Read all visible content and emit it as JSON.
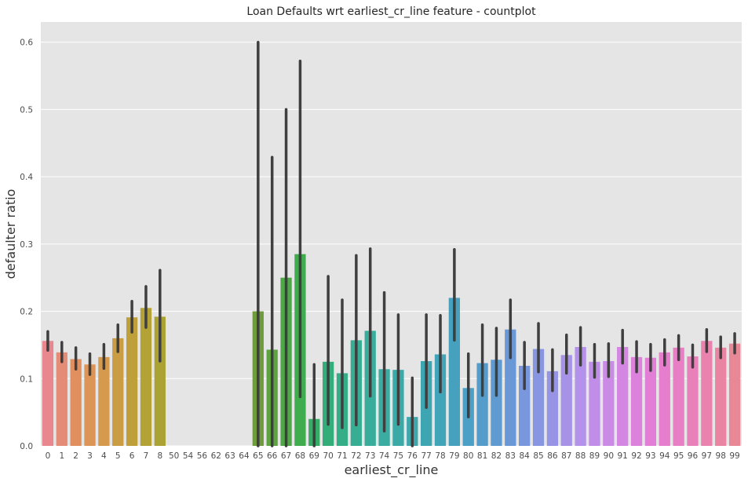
{
  "chart_data": {
    "type": "bar",
    "title": "Loan Defaults wrt earliest_cr_line feature - countplot",
    "xlabel": "earliest_cr_line",
    "ylabel": "defaulter ratio",
    "ylim": [
      0,
      0.63
    ],
    "yticks": [
      "0.0",
      "0.1",
      "0.2",
      "0.3",
      "0.4",
      "0.5",
      "0.6"
    ],
    "grid": true,
    "background": "#e5e5e5",
    "error_bar_color": "#3f3f3f",
    "categories": [
      "0",
      "1",
      "2",
      "3",
      "4",
      "5",
      "6",
      "7",
      "8",
      "50",
      "54",
      "56",
      "62",
      "63",
      "64",
      "65",
      "66",
      "67",
      "68",
      "69",
      "70",
      "71",
      "72",
      "73",
      "74",
      "75",
      "76",
      "77",
      "78",
      "79",
      "80",
      "81",
      "82",
      "83",
      "84",
      "85",
      "86",
      "87",
      "88",
      "89",
      "90",
      "91",
      "92",
      "93",
      "94",
      "95",
      "96",
      "97",
      "98",
      "99"
    ],
    "values": [
      0.156,
      0.139,
      0.129,
      0.121,
      0.132,
      0.16,
      0.191,
      0.205,
      0.192,
      0,
      0,
      0,
      0,
      0,
      0,
      0.2,
      0.143,
      0.25,
      0.285,
      0.04,
      0.125,
      0.108,
      0.157,
      0.171,
      0.114,
      0.113,
      0.043,
      0.126,
      0.136,
      0.22,
      0.086,
      0.123,
      0.128,
      0.173,
      0.119,
      0.144,
      0.111,
      0.135,
      0.147,
      0.125,
      0.126,
      0.147,
      0.132,
      0.131,
      0.139,
      0.146,
      0.133,
      0.156,
      0.146,
      0.152
    ],
    "error_low": [
      0.142,
      0.125,
      0.114,
      0.106,
      0.115,
      0.14,
      0.169,
      0.176,
      0.126,
      0,
      0,
      0,
      0,
      0,
      0,
      0.0,
      0.0,
      0.0,
      0.073,
      0.0,
      0.032,
      0.027,
      0.031,
      0.074,
      0.022,
      0.032,
      0.0,
      0.057,
      0.08,
      0.157,
      0.043,
      0.075,
      0.075,
      0.131,
      0.085,
      0.11,
      0.082,
      0.108,
      0.12,
      0.102,
      0.103,
      0.123,
      0.11,
      0.112,
      0.12,
      0.128,
      0.117,
      0.14,
      0.131,
      0.138
    ],
    "error_high": [
      0.17,
      0.154,
      0.146,
      0.137,
      0.151,
      0.18,
      0.215,
      0.237,
      0.261,
      0,
      0,
      0,
      0,
      0,
      0,
      0.6,
      0.429,
      0.5,
      0.572,
      0.121,
      0.252,
      0.217,
      0.283,
      0.293,
      0.228,
      0.195,
      0.101,
      0.195,
      0.194,
      0.292,
      0.137,
      0.18,
      0.175,
      0.217,
      0.154,
      0.182,
      0.143,
      0.165,
      0.176,
      0.151,
      0.152,
      0.172,
      0.155,
      0.151,
      0.158,
      0.164,
      0.15,
      0.173,
      0.162,
      0.167
    ],
    "colors": [
      "#e8878d",
      "#e58c76",
      "#e28f5f",
      "#dc9557",
      "#d69a4e",
      "#ca9c43",
      "#be9f3a",
      "#b4a236",
      "#aaa334",
      "#9ba63a",
      "#8da842",
      "#7eaa46",
      "#6fac4a",
      "#5fae4c",
      "#4eae4e",
      "#6f9d3e",
      "#5da441",
      "#4ea847",
      "#3fac4e",
      "#35ad67",
      "#33ae7b",
      "#35ae88",
      "#37ae93",
      "#39ad9b",
      "#3aaca2",
      "#3baaa7",
      "#3ca8ad",
      "#3ea6b2",
      "#41a4b8",
      "#45a1be",
      "#4c9fc5",
      "#549dcb",
      "#5f9bd1",
      "#6a98d7",
      "#7897dd",
      "#8896e2",
      "#9894e5",
      "#a693e8",
      "#b491ea",
      "#c08ee9",
      "#cb8ae6",
      "#d486e2",
      "#dc82dd",
      "#e27ed6",
      "#e67dcd",
      "#e87ec4",
      "#e880ba",
      "#e983ae",
      "#e985a2",
      "#e88897"
    ]
  }
}
